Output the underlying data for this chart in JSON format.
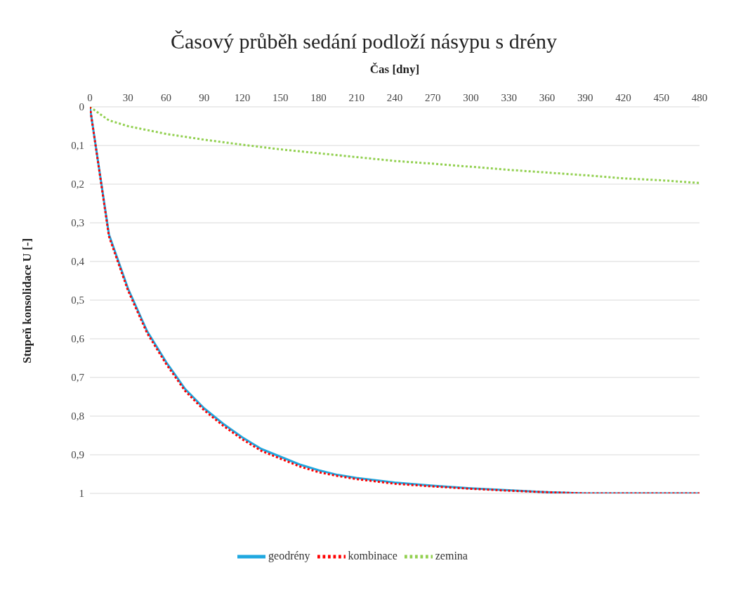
{
  "chart_data": {
    "type": "line",
    "title": "Časový průběh sedání podloží násypu s drény",
    "xlabel": "Čas [dny]",
    "ylabel": "Stupeň konsolidace U [-]",
    "xlim": [
      0,
      480
    ],
    "xticks": [
      0,
      30,
      60,
      90,
      120,
      150,
      180,
      210,
      240,
      270,
      300,
      330,
      360,
      390,
      420,
      450,
      480
    ],
    "ylim": [
      1,
      0
    ],
    "yticks": [
      0,
      {
        "value": 0.1,
        "label": "0,1"
      },
      {
        "value": 0.2,
        "label": "0,2"
      },
      {
        "value": 0.3,
        "label": "0,3"
      },
      {
        "value": 0.4,
        "label": "0,4"
      },
      {
        "value": 0.5,
        "label": "0,5"
      },
      {
        "value": 0.6,
        "label": "0,6"
      },
      {
        "value": 0.7,
        "label": "0,7"
      },
      {
        "value": 0.8,
        "label": "0,8"
      },
      {
        "value": 0.9,
        "label": "0,9"
      },
      1
    ],
    "grid": "y",
    "legend": "bottom",
    "marker": "none",
    "series": [
      {
        "name": "geodrény",
        "color": "#1fa8e0",
        "line_style": "solid",
        "x": [
          0,
          15,
          30,
          45,
          60,
          75,
          90,
          105,
          120,
          135,
          150,
          165,
          180,
          195,
          210,
          240,
          270,
          300,
          330,
          360,
          390,
          420,
          450,
          480
        ],
        "values": [
          0,
          0.33,
          0.47,
          0.58,
          0.66,
          0.73,
          0.78,
          0.82,
          0.855,
          0.885,
          0.905,
          0.925,
          0.94,
          0.952,
          0.96,
          0.972,
          0.98,
          0.987,
          0.992,
          0.997,
          1,
          1,
          1,
          1
        ]
      },
      {
        "name": "zemina",
        "color": "#92d050",
        "line_style": "dotted",
        "x": [
          0,
          15,
          30,
          60,
          90,
          120,
          150,
          180,
          210,
          240,
          270,
          300,
          330,
          360,
          390,
          420,
          450,
          480
        ],
        "values": [
          0,
          0.035,
          0.05,
          0.07,
          0.085,
          0.098,
          0.11,
          0.12,
          0.13,
          0.14,
          0.147,
          0.155,
          0.163,
          0.17,
          0.177,
          0.185,
          0.19,
          0.197
        ]
      },
      {
        "name": "kombinace",
        "color": "#ff0000",
        "line_style": "dotted",
        "x": [
          0,
          15,
          30,
          45,
          60,
          75,
          90,
          105,
          120,
          135,
          150,
          165,
          180,
          195,
          210,
          240,
          270,
          300,
          330,
          360,
          390,
          420,
          450,
          480
        ],
        "values": [
          0,
          0.335,
          0.475,
          0.585,
          0.665,
          0.735,
          0.785,
          0.825,
          0.86,
          0.89,
          0.91,
          0.93,
          0.945,
          0.955,
          0.963,
          0.975,
          0.982,
          0.988,
          0.993,
          0.997,
          1,
          1,
          1,
          1
        ]
      }
    ]
  }
}
